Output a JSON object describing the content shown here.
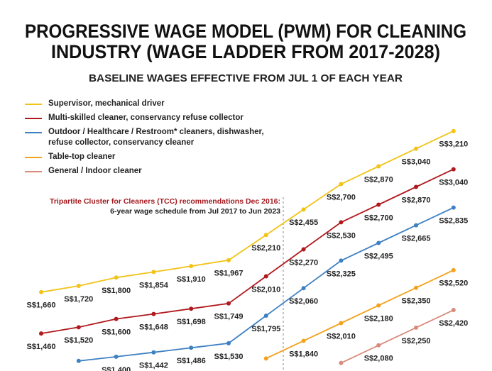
{
  "chart_data": {
    "type": "line",
    "title": [
      "PROGRESSIVE WAGE MODEL (PWM) FOR CLEANING",
      "INDUSTRY (WAGE LADDER FROM 2017-2028)"
    ],
    "subtitle": "BASELINE WAGES EFFECTIVE FROM JUL 1 OF EACH YEAR",
    "annotation": [
      "Tripartite Cluster for Cleaners (TCC) recommendations Dec 2016:",
      "6-year wage schedule from Jul 2017 to Jun 2023"
    ],
    "categories": [
      null,
      null,
      null,
      null,
      null,
      null,
      null,
      null,
      null,
      null,
      null,
      null
    ],
    "series": [
      {
        "name": "Supervisor, mechanical driver",
        "color": "#f2c318",
        "values": [
          1660,
          1720,
          1800,
          1854,
          1910,
          1967,
          2210,
          2455,
          2700,
          2870,
          3040,
          3210
        ],
        "value_labels": [
          "S$1,660",
          "S$1,720",
          "S$1,800",
          "S$1,854",
          "S$1,910",
          "S$1,967",
          "S$2,210",
          "S$2,455",
          "S$2,700",
          "S$2,870",
          "S$3,040",
          "S$3,210"
        ]
      },
      {
        "name": "Multi-skilled cleaner, conservancy refuse collector",
        "color": "#b0191e",
        "values": [
          1460,
          1520,
          1600,
          1648,
          1698,
          1749,
          2010,
          2270,
          2530,
          2700,
          2870,
          3040
        ],
        "value_labels": [
          "S$1,460",
          "S$1,520",
          "S$1,600",
          "S$1,648",
          "S$1,698",
          "S$1,749",
          "S$2,010",
          "S$2,270",
          "S$2,530",
          "S$2,700",
          "S$2,870",
          "S$3,040"
        ]
      },
      {
        "name": "Outdoor / Healthcare / Restroom* cleaners, dishwasher, refuse collector, conservancy cleaner",
        "color": "#3d80c3",
        "values": [
          null,
          1360,
          1400,
          1442,
          1486,
          1530,
          1795,
          2060,
          2325,
          2495,
          2665,
          2835
        ],
        "value_labels": [
          null,
          null,
          "S$1,400",
          "S$1,442",
          "S$1,486",
          "S$1,530",
          "S$1,795",
          "S$2,060",
          "S$2,325",
          "S$2,495",
          "S$2,665",
          "S$2,835"
        ]
      },
      {
        "name": "Table-top cleaner",
        "color": "#f4a11c",
        "values": [
          null,
          null,
          null,
          null,
          null,
          null,
          1670,
          1840,
          2010,
          2180,
          2350,
          2520
        ],
        "value_labels": [
          null,
          null,
          null,
          null,
          null,
          null,
          null,
          "S$1,840",
          "S$2,010",
          "S$2,180",
          "S$2,350",
          "S$2,520"
        ]
      },
      {
        "name": "General / Indoor cleaner",
        "color": "#d88b7c",
        "values": [
          null,
          null,
          null,
          null,
          null,
          null,
          null,
          null,
          1910,
          2080,
          2250,
          2420
        ],
        "value_labels": [
          null,
          null,
          null,
          null,
          null,
          null,
          null,
          null,
          null,
          "S$2,080",
          "S$2,250",
          "S$2,420"
        ]
      }
    ]
  }
}
